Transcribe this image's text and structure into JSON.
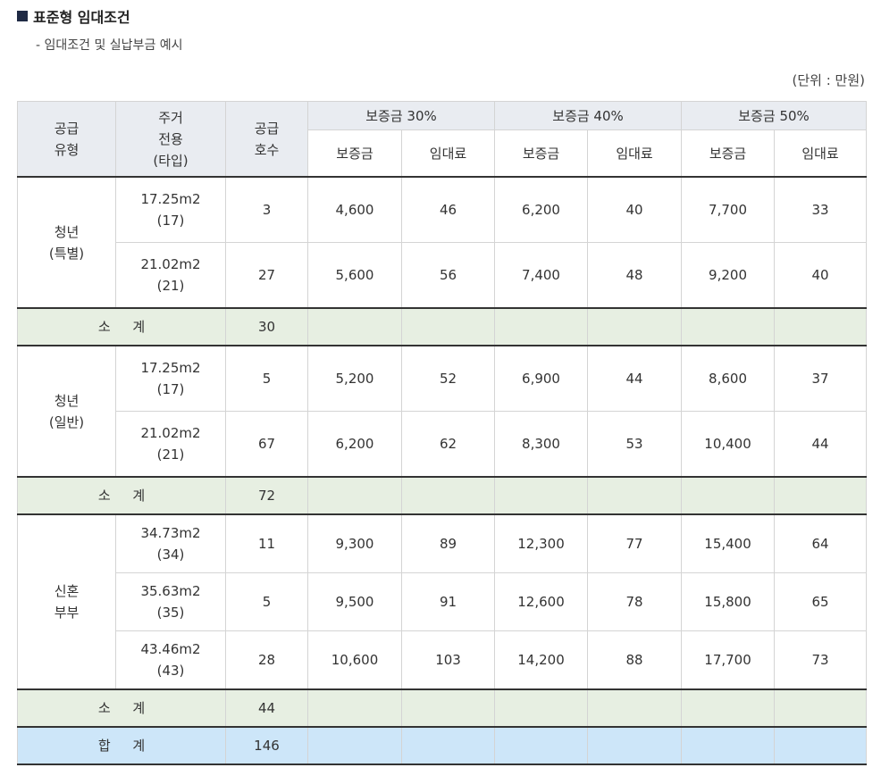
{
  "title": "표준형 임대조건",
  "subtitle": "- 임대조건 및 실납부금 예시",
  "unit": "(단위 : 만원)",
  "header": {
    "supply_type": [
      "공급",
      "유형"
    ],
    "area": [
      "주거",
      "전용",
      "(타입)"
    ],
    "units": [
      "공급",
      "호수"
    ],
    "groups": [
      "보증금 30%",
      "보증금 40%",
      "보증금 50%"
    ],
    "deposit": "보증금",
    "rent": "임대료"
  },
  "sections": [
    {
      "type": [
        "청년",
        "(특별)"
      ],
      "rows": [
        {
          "area": "17.25m2",
          "tp": "(17)",
          "units": "3",
          "v": [
            "4,600",
            "46",
            "6,200",
            "40",
            "7,700",
            "33"
          ]
        },
        {
          "area": "21.02m2",
          "tp": "(21)",
          "units": "27",
          "v": [
            "5,600",
            "56",
            "7,400",
            "48",
            "9,200",
            "40"
          ]
        }
      ],
      "subtotal_label": "소 계",
      "subtotal": "30"
    },
    {
      "type": [
        "청년",
        "(일반)"
      ],
      "rows": [
        {
          "area": "17.25m2",
          "tp": "(17)",
          "units": "5",
          "v": [
            "5,200",
            "52",
            "6,900",
            "44",
            "8,600",
            "37"
          ]
        },
        {
          "area": "21.02m2",
          "tp": "(21)",
          "units": "67",
          "v": [
            "6,200",
            "62",
            "8,300",
            "53",
            "10,400",
            "44"
          ]
        }
      ],
      "subtotal_label": "소 계",
      "subtotal": "72"
    },
    {
      "type": [
        "신혼",
        "부부"
      ],
      "rows": [
        {
          "area": "34.73m2",
          "tp": "(34)",
          "units": "11",
          "v": [
            "9,300",
            "89",
            "12,300",
            "77",
            "15,400",
            "64"
          ]
        },
        {
          "area": "35.63m2",
          "tp": "(35)",
          "units": "5",
          "v": [
            "9,500",
            "91",
            "12,600",
            "78",
            "15,800",
            "65"
          ]
        },
        {
          "area": "43.46m2",
          "tp": "(43)",
          "units": "28",
          "v": [
            "10,600",
            "103",
            "14,200",
            "88",
            "17,700",
            "73"
          ]
        }
      ],
      "subtotal_label": "소 계",
      "subtotal": "44"
    }
  ],
  "total_label": "합 계",
  "total": "146"
}
